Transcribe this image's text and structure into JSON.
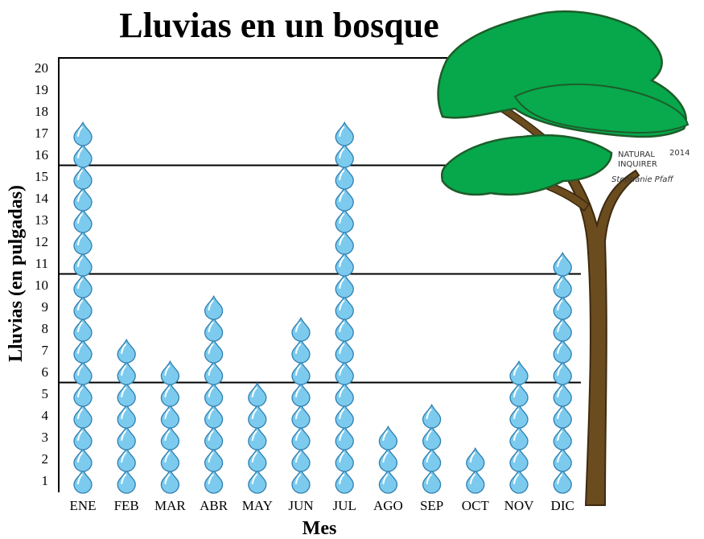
{
  "chart_data": {
    "type": "pictograph",
    "title": "Lluvias en un bosque",
    "x_label": "Mes",
    "y_label": "Lluvias (en pulgadas)",
    "categories": [
      "ENE",
      "FEB",
      "MAR",
      "ABR",
      "MAY",
      "JUN",
      "JUL",
      "AGO",
      "SEP",
      "OCT",
      "NOV",
      "DIC"
    ],
    "values": [
      17,
      7,
      6,
      9,
      5,
      8,
      17,
      3,
      4,
      2,
      6,
      11
    ],
    "color": "#7ccbee",
    "ylim": [
      0,
      20.5
    ],
    "yticks": [
      1,
      2,
      3,
      4,
      5,
      6,
      7,
      8,
      9,
      10,
      11,
      12,
      13,
      14,
      15,
      16,
      17,
      18,
      19,
      20
    ],
    "reference_lines": [
      5.5,
      10.5,
      15.5
    ],
    "credit": [
      "NATURAL",
      "2014",
      "INQUIRER",
      "Stephanie Pfaff"
    ]
  }
}
